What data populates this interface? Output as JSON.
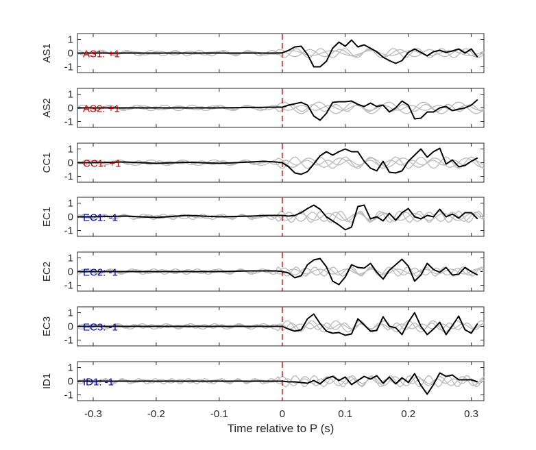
{
  "chart_data": {
    "type": "line",
    "xlabel": "Time relative to P (s)",
    "xlim": [
      -0.325,
      0.32
    ],
    "xticks": [
      -0.3,
      -0.2,
      -0.1,
      0,
      0.1,
      0.2,
      0.3
    ],
    "xtick_labels": [
      "-0.3",
      "-0.2",
      "-0.1",
      "0",
      "0.1",
      "0.2",
      "0.3"
    ],
    "ylim": [
      -1.4,
      1.4
    ],
    "yticks": [
      -1,
      0,
      1
    ],
    "ytick_labels": [
      "-1",
      "0",
      "1"
    ],
    "p_arrival_x": 0,
    "colors": {
      "positive": "#c00000",
      "negative": "#0000b4",
      "trace": "#000000",
      "background_traces": "#bdbdbd",
      "p_marker": "#e60000"
    },
    "panels": [
      {
        "name": "AS1",
        "label": "AS1: +1",
        "polarity": "+1",
        "x": [
          -0.325,
          -0.3,
          -0.2,
          -0.1,
          -0.05,
          -0.01,
          0,
          0.01,
          0.02,
          0.03,
          0.04,
          0.05,
          0.06,
          0.07,
          0.08,
          0.09,
          0.1,
          0.11,
          0.12,
          0.13,
          0.14,
          0.15,
          0.16,
          0.17,
          0.18,
          0.19,
          0.2,
          0.21,
          0.22,
          0.23,
          0.24,
          0.25,
          0.26,
          0.27,
          0.28,
          0.29,
          0.3,
          0.31
        ],
        "y": [
          0,
          0,
          0,
          0,
          0,
          0,
          0.02,
          0.2,
          0.45,
          0.5,
          -0.1,
          -1.0,
          -1.0,
          -0.6,
          0.35,
          0.8,
          0.5,
          0.95,
          0.45,
          0.6,
          0.35,
          0.1,
          -0.3,
          -0.55,
          -0.75,
          -0.55,
          0.05,
          0.3,
          0.05,
          -0.2,
          0.1,
          0.2,
          0.05,
          0.15,
          0.3,
          0.0,
          0.3,
          -0.3
        ]
      },
      {
        "name": "AS2",
        "label": "AS2: +1",
        "polarity": "+1",
        "x": [
          -0.325,
          -0.3,
          -0.2,
          -0.1,
          -0.05,
          -0.01,
          0,
          0.01,
          0.02,
          0.03,
          0.04,
          0.05,
          0.06,
          0.07,
          0.08,
          0.09,
          0.1,
          0.11,
          0.12,
          0.13,
          0.14,
          0.15,
          0.16,
          0.17,
          0.18,
          0.19,
          0.2,
          0.21,
          0.22,
          0.23,
          0.24,
          0.25,
          0.26,
          0.27,
          0.28,
          0.29,
          0.3,
          0.31
        ],
        "y": [
          0,
          0,
          0,
          0,
          0.03,
          0.05,
          0.05,
          0.2,
          0.3,
          0.4,
          0.2,
          -0.6,
          -0.9,
          -0.4,
          0.4,
          0.45,
          0.45,
          0.5,
          0.25,
          0.1,
          0.35,
          0.1,
          0.2,
          -0.3,
          0.0,
          0.5,
          0.2,
          -0.8,
          -0.75,
          -0.3,
          -0.3,
          0.0,
          0.1,
          -0.2,
          -0.1,
          0.0,
          0.2,
          0.6
        ]
      },
      {
        "name": "CC1",
        "label": "CC1: +1",
        "polarity": "+1",
        "x": [
          -0.325,
          -0.3,
          -0.25,
          -0.2,
          -0.15,
          -0.1,
          -0.05,
          -0.03,
          -0.01,
          0,
          0.01,
          0.02,
          0.03,
          0.04,
          0.05,
          0.06,
          0.07,
          0.08,
          0.09,
          0.1,
          0.11,
          0.12,
          0.13,
          0.14,
          0.15,
          0.16,
          0.17,
          0.18,
          0.19,
          0.2,
          0.21,
          0.22,
          0.23,
          0.24,
          0.25,
          0.26,
          0.27,
          0.28,
          0.29,
          0.3,
          0.31
        ],
        "y": [
          0,
          0,
          0.05,
          -0.05,
          0.03,
          -0.05,
          0.05,
          0.1,
          0.05,
          0.0,
          -0.3,
          -0.75,
          -0.85,
          -0.65,
          -0.1,
          0.5,
          0.8,
          0.55,
          0.8,
          1.0,
          0.8,
          0.8,
          0.1,
          -0.4,
          -0.6,
          0.1,
          -0.7,
          -0.75,
          -0.6,
          0.1,
          0.55,
          1.0,
          0.4,
          0.8,
          1.05,
          -0.1,
          0.2,
          -0.3,
          -0.2,
          0.1,
          0.35
        ]
      },
      {
        "name": "EC1",
        "label": "EC1: -1",
        "polarity": "-1",
        "x": [
          -0.325,
          -0.3,
          -0.25,
          -0.2,
          -0.15,
          -0.1,
          -0.05,
          -0.02,
          0,
          0.01,
          0.02,
          0.03,
          0.04,
          0.05,
          0.06,
          0.07,
          0.08,
          0.09,
          0.1,
          0.11,
          0.12,
          0.13,
          0.14,
          0.15,
          0.16,
          0.17,
          0.18,
          0.19,
          0.2,
          0.21,
          0.22,
          0.23,
          0.24,
          0.25,
          0.26,
          0.27,
          0.28,
          0.29,
          0.3,
          0.31
        ],
        "y": [
          0,
          0,
          0.05,
          -0.05,
          0.1,
          0.0,
          0.05,
          0.1,
          0.1,
          0.05,
          0.1,
          0.3,
          0.6,
          0.85,
          0.55,
          0.0,
          -0.3,
          -0.6,
          -0.95,
          -0.75,
          0.75,
          0.85,
          -0.15,
          0.0,
          -0.3,
          0.25,
          -0.25,
          0.3,
          0.6,
          0.0,
          -0.15,
          0.1,
          0.0,
          0.55,
          0.0,
          0.2,
          -0.1,
          0.3,
          0.3,
          -0.15
        ]
      },
      {
        "name": "EC2",
        "label": "EC2: -1",
        "polarity": "-1",
        "x": [
          -0.325,
          -0.3,
          -0.2,
          -0.1,
          -0.05,
          -0.01,
          0,
          0.01,
          0.02,
          0.03,
          0.04,
          0.05,
          0.06,
          0.07,
          0.08,
          0.09,
          0.1,
          0.11,
          0.12,
          0.13,
          0.14,
          0.15,
          0.16,
          0.17,
          0.18,
          0.19,
          0.2,
          0.21,
          0.22,
          0.23,
          0.24,
          0.25,
          0.26,
          0.27,
          0.28,
          0.29,
          0.3,
          0.31
        ],
        "y": [
          0,
          0,
          0,
          0,
          0.05,
          0.05,
          0.0,
          -0.1,
          -0.45,
          -0.3,
          0.5,
          0.85,
          0.95,
          0.35,
          -0.7,
          -0.95,
          -0.4,
          0.5,
          0.3,
          0.25,
          0.6,
          -0.05,
          -0.55,
          0.1,
          0.5,
          0.9,
          0.4,
          -0.7,
          -0.25,
          0.6,
          0.15,
          -0.05,
          0.3,
          -0.25,
          -0.2,
          0.3,
          0.0,
          -0.25
        ]
      },
      {
        "name": "EC3",
        "label": "EC3: -1",
        "polarity": "-1",
        "x": [
          -0.325,
          -0.3,
          -0.2,
          -0.1,
          -0.05,
          -0.01,
          0,
          0.01,
          0.02,
          0.03,
          0.04,
          0.05,
          0.06,
          0.07,
          0.08,
          0.09,
          0.1,
          0.11,
          0.12,
          0.13,
          0.14,
          0.15,
          0.16,
          0.17,
          0.18,
          0.19,
          0.2,
          0.21,
          0.22,
          0.23,
          0.24,
          0.25,
          0.26,
          0.27,
          0.28,
          0.29,
          0.3,
          0.31
        ],
        "y": [
          0,
          0,
          0,
          0,
          0,
          0,
          0.0,
          -0.2,
          -0.35,
          -0.25,
          0.55,
          0.9,
          0.2,
          -0.35,
          -0.5,
          -0.45,
          -0.65,
          -0.55,
          0.55,
          0.1,
          -0.35,
          -0.3,
          0.7,
          0.0,
          -0.1,
          -0.6,
          0.3,
          1.0,
          0.0,
          -0.6,
          -0.2,
          0.3,
          -0.6,
          0.05,
          0.75,
          -0.25,
          -0.5,
          0.2
        ]
      },
      {
        "name": "ID1",
        "label": "ID1: -1",
        "polarity": "-1",
        "x": [
          -0.325,
          -0.3,
          -0.2,
          -0.1,
          -0.05,
          -0.01,
          0,
          0.01,
          0.02,
          0.03,
          0.04,
          0.05,
          0.06,
          0.07,
          0.08,
          0.09,
          0.1,
          0.11,
          0.12,
          0.13,
          0.14,
          0.15,
          0.16,
          0.17,
          0.18,
          0.19,
          0.2,
          0.21,
          0.22,
          0.23,
          0.24,
          0.25,
          0.26,
          0.27,
          0.28,
          0.29,
          0.3,
          0.31
        ],
        "y": [
          0,
          0,
          0,
          0,
          0,
          0,
          0.0,
          -0.05,
          -0.05,
          -0.1,
          -0.15,
          0.05,
          -0.2,
          0.2,
          0.35,
          0.05,
          0.3,
          -0.25,
          0.05,
          0.35,
          0.15,
          0.4,
          -0.15,
          0.3,
          -0.2,
          0.25,
          -0.1,
          0.55,
          -0.3,
          -0.95,
          -0.25,
          0.6,
          0.35,
          0.45,
          0.1,
          0.1,
          0.1,
          -0.05
        ]
      }
    ]
  }
}
